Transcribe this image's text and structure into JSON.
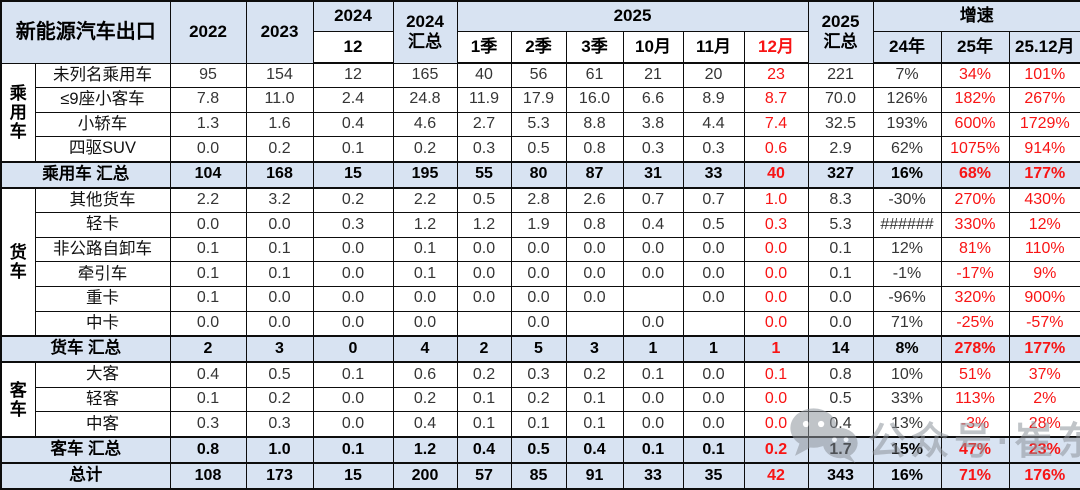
{
  "colors": {
    "header_bg": "#d8e3f2",
    "summary_bg": "#d8e3f2",
    "red": "#f81414",
    "border": "#0d0d0d",
    "body_text": "#353535"
  },
  "watermark": {
    "icon": "wechat-icon",
    "text": "公众号·崔东树"
  },
  "chart_data": {
    "type": "table",
    "title": "新能源汽车出口",
    "unit_note": "",
    "header": {
      "title": "新能源汽车出口",
      "col_2022": "2022",
      "col_2023": "2023",
      "col_2024": "2024",
      "col_2024_sub": "12",
      "col_2024_total": [
        "2024",
        "汇总"
      ],
      "col_2025": "2025",
      "col_2025_months": [
        "1季",
        "2季",
        "3季",
        "10月",
        "11月",
        "12月"
      ],
      "col_2025_total": [
        "2025",
        "汇总"
      ],
      "growth": "增速",
      "growth_cols": [
        "24年",
        "25年",
        "25.12月"
      ]
    },
    "value_column_keys": [
      "2022",
      "2023",
      "2024-12",
      "2024汇总",
      "2025-1季",
      "2025-2季",
      "2025-3季",
      "2025-10月",
      "2025-11月",
      "2025-12月",
      "2025汇总",
      "增速24年",
      "增速25年",
      "增速25.12月"
    ],
    "red_value_columns": [
      9,
      12,
      13
    ],
    "rows": [
      {
        "type": "data",
        "group": "乘用车",
        "group_span": 4,
        "label": "未列名乘用车",
        "values": [
          "95",
          "154",
          "12",
          "165",
          "40",
          "56",
          "61",
          "21",
          "20",
          "23",
          "221",
          "7%",
          "34%",
          "101%"
        ]
      },
      {
        "type": "data",
        "label": "≤9座小客车",
        "values": [
          "7.8",
          "11.0",
          "2.4",
          "24.8",
          "11.9",
          "17.9",
          "16.0",
          "6.6",
          "8.9",
          "8.7",
          "70.0",
          "126%",
          "182%",
          "267%"
        ]
      },
      {
        "type": "data",
        "label": "小轿车",
        "values": [
          "1.3",
          "1.6",
          "0.4",
          "4.6",
          "2.7",
          "5.3",
          "8.8",
          "3.8",
          "4.4",
          "7.4",
          "32.5",
          "193%",
          "600%",
          "1729%"
        ]
      },
      {
        "type": "data",
        "label": "四驱SUV",
        "values": [
          "0.0",
          "0.2",
          "0.1",
          "0.2",
          "0.3",
          "0.5",
          "0.8",
          "0.3",
          "0.3",
          "0.6",
          "2.9",
          "62%",
          "1075%",
          "914%"
        ]
      },
      {
        "type": "summary",
        "label": "乘用车 汇总",
        "values": [
          "104",
          "168",
          "15",
          "195",
          "55",
          "80",
          "87",
          "31",
          "33",
          "40",
          "327",
          "16%",
          "68%",
          "177%"
        ]
      },
      {
        "type": "data",
        "group": "货车",
        "group_span": 6,
        "label": "其他货车",
        "values": [
          "2.2",
          "3.2",
          "0.2",
          "2.2",
          "0.5",
          "2.8",
          "2.6",
          "0.7",
          "0.7",
          "1.0",
          "8.3",
          "-30%",
          "270%",
          "430%"
        ]
      },
      {
        "type": "data",
        "label": "轻卡",
        "values": [
          "0.0",
          "0.0",
          "0.3",
          "1.2",
          "1.2",
          "1.9",
          "0.8",
          "0.4",
          "0.5",
          "0.3",
          "5.3",
          "######",
          "330%",
          "12%"
        ]
      },
      {
        "type": "data",
        "label": "非公路自卸车",
        "values": [
          "0.1",
          "0.1",
          "0.0",
          "0.1",
          "0.0",
          "0.0",
          "0.0",
          "0.0",
          "0.0",
          "0.0",
          "0.1",
          "12%",
          "81%",
          "110%"
        ]
      },
      {
        "type": "data",
        "label": "牵引车",
        "values": [
          "0.1",
          "0.1",
          "0.0",
          "0.1",
          "0.0",
          "0.0",
          "0.0",
          "0.0",
          "0.0",
          "0.0",
          "0.1",
          "-1%",
          "-17%",
          "9%"
        ]
      },
      {
        "type": "data",
        "label": "重卡",
        "values": [
          "0.1",
          "0.0",
          "0.0",
          "0.0",
          "0.0",
          "0.0",
          "0.0",
          "",
          "0.0",
          "0.0",
          "0.0",
          "-96%",
          "320%",
          "900%"
        ]
      },
      {
        "type": "data",
        "label": "中卡",
        "values": [
          "0.0",
          "0.0",
          "0.0",
          "0.0",
          "",
          "0.0",
          "",
          "0.0",
          "",
          "0.0",
          "0.0",
          "71%",
          "-25%",
          "-57%"
        ]
      },
      {
        "type": "summary",
        "label": "货车 汇总",
        "values": [
          "2",
          "3",
          "0",
          "4",
          "2",
          "5",
          "3",
          "1",
          "1",
          "1",
          "14",
          "8%",
          "278%",
          "177%"
        ]
      },
      {
        "type": "data",
        "group": "客车",
        "group_span": 3,
        "label": "大客",
        "values": [
          "0.4",
          "0.5",
          "0.1",
          "0.6",
          "0.2",
          "0.3",
          "0.2",
          "0.1",
          "0.0",
          "0.1",
          "0.8",
          "10%",
          "51%",
          "37%"
        ]
      },
      {
        "type": "data",
        "label": "轻客",
        "values": [
          "0.1",
          "0.2",
          "0.0",
          "0.2",
          "0.1",
          "0.2",
          "0.1",
          "0.0",
          "0.0",
          "0.0",
          "0.5",
          "33%",
          "113%",
          "2%"
        ]
      },
      {
        "type": "data",
        "label": "中客",
        "values": [
          "0.3",
          "0.3",
          "0.0",
          "0.4",
          "0.1",
          "0.1",
          "0.1",
          "0.0",
          "0.0",
          "0.0",
          "0.4",
          "13%",
          "-3%",
          "28%"
        ]
      },
      {
        "type": "summary",
        "label": "客车 汇总",
        "values": [
          "0.8",
          "1.0",
          "0.1",
          "1.2",
          "0.4",
          "0.5",
          "0.4",
          "0.1",
          "0.1",
          "0.2",
          "1.7",
          "15%",
          "47%",
          "23%"
        ]
      },
      {
        "type": "summary",
        "label": "总计",
        "values": [
          "108",
          "173",
          "15",
          "200",
          "57",
          "85",
          "91",
          "33",
          "35",
          "42",
          "343",
          "16%",
          "71%",
          "176%"
        ]
      }
    ]
  }
}
